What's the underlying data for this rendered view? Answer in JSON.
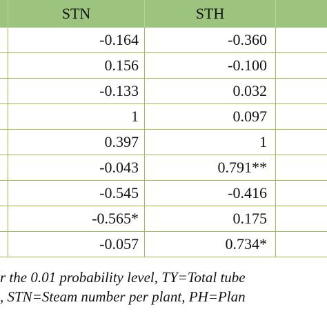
{
  "table": {
    "header": [
      "STN",
      "STH"
    ],
    "rows": [
      [
        "-0.164",
        "-0.360"
      ],
      [
        "0.156",
        "-0.100"
      ],
      [
        "-0.133",
        "0.032"
      ],
      [
        "1",
        "0.097"
      ],
      [
        "0.397",
        "1"
      ],
      [
        "-0.043",
        "0.791**"
      ],
      [
        "-0.545",
        "-0.416"
      ],
      [
        "-0.565*",
        "0.175"
      ],
      [
        "-0.057",
        "0.734*"
      ]
    ]
  },
  "footnote": [
    "r the 0.01 probability level, TY=Total tube",
    ", STN=Steam number per plant, PH=Plan"
  ]
}
